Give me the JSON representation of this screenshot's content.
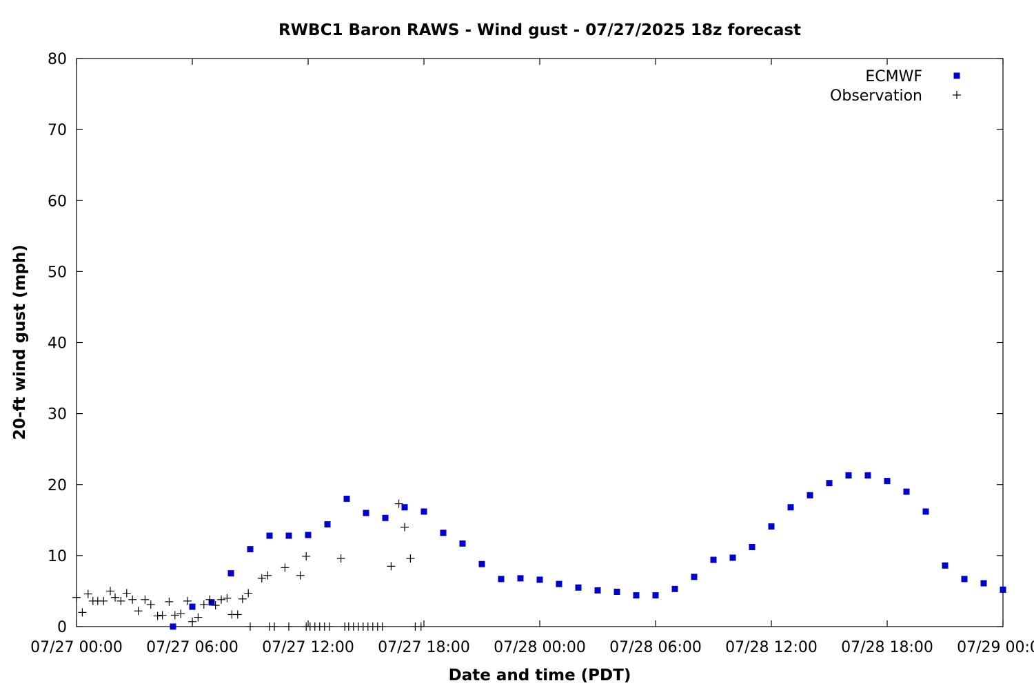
{
  "chart_data": {
    "type": "scatter",
    "title": "RWBC1 Baron RAWS - Wind gust - 07/27/2025 18z forecast",
    "xlabel": "Date and time (PDT)",
    "ylabel": "20-ft wind gust (mph)",
    "ylim": [
      0,
      80
    ],
    "yticks": [
      0,
      10,
      20,
      30,
      40,
      50,
      60,
      70,
      80
    ],
    "x_unit": "hours since 07/27 00:00 PDT",
    "xlim": [
      0,
      48
    ],
    "xticks": [
      {
        "x": 0,
        "label": "07/27 00:00"
      },
      {
        "x": 6,
        "label": "07/27 06:00"
      },
      {
        "x": 12,
        "label": "07/27 12:00"
      },
      {
        "x": 18,
        "label": "07/27 18:00"
      },
      {
        "x": 24,
        "label": "07/28 00:00"
      },
      {
        "x": 30,
        "label": "07/28 06:00"
      },
      {
        "x": 36,
        "label": "07/28 12:00"
      },
      {
        "x": 42,
        "label": "07/28 18:00"
      },
      {
        "x": 48,
        "label": "07/29 00:00"
      }
    ],
    "grid": false,
    "legend_position": "top-right",
    "series": [
      {
        "name": "ECMWF",
        "marker": "square",
        "color": "#0000cc",
        "points": [
          [
            5,
            0
          ],
          [
            6,
            2.8
          ],
          [
            7,
            3.4
          ],
          [
            8,
            7.5
          ],
          [
            9,
            10.9
          ],
          [
            10,
            12.8
          ],
          [
            11,
            12.8
          ],
          [
            12,
            12.9
          ],
          [
            13,
            14.4
          ],
          [
            14,
            18
          ],
          [
            15,
            16
          ],
          [
            16,
            15.3
          ],
          [
            17,
            16.8
          ],
          [
            18,
            16.2
          ],
          [
            19,
            13.2
          ],
          [
            20,
            11.7
          ],
          [
            21,
            8.8
          ],
          [
            22,
            6.7
          ],
          [
            23,
            6.8
          ],
          [
            24,
            6.6
          ],
          [
            25,
            6.0
          ],
          [
            26,
            5.5
          ],
          [
            27,
            5.1
          ],
          [
            28,
            4.9
          ],
          [
            29,
            4.4
          ],
          [
            30,
            4.4
          ],
          [
            31,
            5.3
          ],
          [
            32,
            7.0
          ],
          [
            33,
            9.4
          ],
          [
            34,
            9.7
          ],
          [
            35,
            11.2
          ],
          [
            36,
            14.1
          ],
          [
            37,
            16.8
          ],
          [
            38,
            18.5
          ],
          [
            39,
            20.2
          ],
          [
            40,
            21.3
          ],
          [
            41,
            21.3
          ],
          [
            42,
            20.5
          ],
          [
            43,
            19.0
          ],
          [
            44,
            16.2
          ],
          [
            45,
            8.6
          ],
          [
            46,
            6.7
          ],
          [
            47,
            6.1
          ],
          [
            48,
            5.2
          ]
        ]
      },
      {
        "name": "Observation",
        "marker": "plus",
        "color": "#000000",
        "points": [
          [
            0,
            4.1
          ],
          [
            0.3,
            2.0
          ],
          [
            0.6,
            4.6
          ],
          [
            0.85,
            3.6
          ],
          [
            1.1,
            3.6
          ],
          [
            1.4,
            3.6
          ],
          [
            1.75,
            5.0
          ],
          [
            2.0,
            4.1
          ],
          [
            2.3,
            3.6
          ],
          [
            2.6,
            4.7
          ],
          [
            2.9,
            3.8
          ],
          [
            3.2,
            2.2
          ],
          [
            3.55,
            3.8
          ],
          [
            3.85,
            3.1
          ],
          [
            4.2,
            1.5
          ],
          [
            4.45,
            1.6
          ],
          [
            4.8,
            3.5
          ],
          [
            5.1,
            1.6
          ],
          [
            5.4,
            1.8
          ],
          [
            5.75,
            3.6
          ],
          [
            6.0,
            0.7
          ],
          [
            6.3,
            1.3
          ],
          [
            6.6,
            3.1
          ],
          [
            6.9,
            3.8
          ],
          [
            7.2,
            3.0
          ],
          [
            7.5,
            3.8
          ],
          [
            7.8,
            4.0
          ],
          [
            8.05,
            1.7
          ],
          [
            8.35,
            1.7
          ],
          [
            8.6,
            3.9
          ],
          [
            8.9,
            4.7
          ],
          [
            9.6,
            6.8
          ],
          [
            9.9,
            7.2
          ],
          [
            10.8,
            8.3
          ],
          [
            11.6,
            7.2
          ],
          [
            11.9,
            9.9
          ],
          [
            13.7,
            9.6
          ],
          [
            16.3,
            8.5
          ],
          [
            16.7,
            17.3
          ],
          [
            17.0,
            14.0
          ],
          [
            17.3,
            9.6
          ],
          [
            9.0,
            0
          ],
          [
            10.0,
            0
          ],
          [
            10.25,
            0
          ],
          [
            11.0,
            0
          ],
          [
            11.9,
            0
          ],
          [
            12.1,
            0
          ],
          [
            12.35,
            0
          ],
          [
            12.6,
            0
          ],
          [
            12.85,
            0
          ],
          [
            13.1,
            0
          ],
          [
            13.9,
            0
          ],
          [
            14.1,
            0
          ],
          [
            14.35,
            0
          ],
          [
            14.6,
            0
          ],
          [
            14.85,
            0
          ],
          [
            15.1,
            0
          ],
          [
            15.35,
            0
          ],
          [
            15.6,
            0
          ],
          [
            15.85,
            0
          ],
          [
            17.55,
            0
          ],
          [
            17.85,
            0
          ]
        ]
      }
    ]
  }
}
